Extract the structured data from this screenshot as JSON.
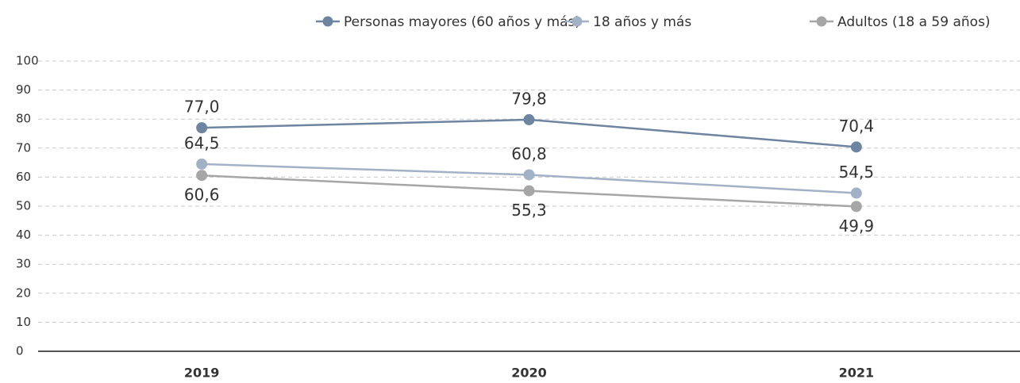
{
  "chart_data": {
    "type": "line",
    "categories": [
      "2019",
      "2020",
      "2021"
    ],
    "series": [
      {
        "name": "Personas mayores (60 años y más)",
        "color": "#6e84a0",
        "values": [
          77.0,
          79.8,
          70.4
        ],
        "value_labels": [
          "77,0",
          "79,8",
          "70,4"
        ]
      },
      {
        "name": "18 años y más",
        "color": "#a3b1c6",
        "values": [
          64.5,
          60.8,
          54.5
        ],
        "value_labels": [
          "64,5",
          "60,8",
          "54,5"
        ]
      },
      {
        "name": "Adultos (18 a 59 años)",
        "color": "#a6a6a6",
        "values": [
          60.6,
          55.3,
          49.9
        ],
        "value_labels": [
          "60,6",
          "55,3",
          "49,9"
        ]
      }
    ],
    "ylim": [
      0,
      100
    ],
    "yticks": [
      0,
      10,
      20,
      30,
      40,
      50,
      60,
      70,
      80,
      90,
      100
    ],
    "grid": true,
    "legend": "top-right"
  }
}
